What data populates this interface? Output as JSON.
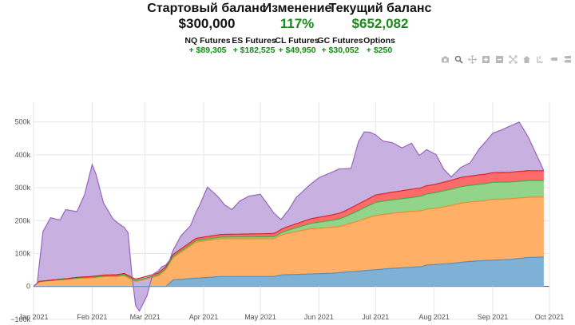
{
  "summary": {
    "start_label": "Стартовый баланс",
    "start_value": "$300,000",
    "change_label": "Изменение",
    "change_value": "117%",
    "current_label": "Текущий баланс",
    "current_value": "$652,082",
    "value_color": "#1a8a1a",
    "subtotals": [
      {
        "label": "NQ Futures",
        "value": "+ $89,305"
      },
      {
        "label": "ES Futures",
        "value": "+ $182,525"
      },
      {
        "label": "CL Futures",
        "value": "+ $49,950"
      },
      {
        "label": "GC Futures",
        "value": "+ $30,052"
      },
      {
        "label": "Options",
        "value": "+ $250"
      }
    ]
  },
  "toolbar_icons": [
    "camera-icon",
    "zoom-icon",
    "pan-icon",
    "zoom-in-icon",
    "zoom-out-icon",
    "autoscale-icon",
    "home-icon",
    "spike-lines-icon",
    "hover-closest-icon",
    "hover-compare-icon"
  ],
  "chart_data": {
    "type": "area",
    "stacked": true,
    "x_axis": {
      "min": "2021-01-01",
      "max": "2021-10-01",
      "tick_labels": [
        "Jan 2021",
        "Feb 2021",
        "Mar 2021",
        "Apr 2021",
        "May 2021",
        "Jun 2021",
        "Jul 2021",
        "Aug 2021",
        "Sep 2021",
        "Oct 2021"
      ],
      "ticks": [
        "2021-01-01",
        "2021-02-01",
        "2021-03-01",
        "2021-04-01",
        "2021-05-01",
        "2021-06-01",
        "2021-07-01",
        "2021-08-01",
        "2021-09-01",
        "2021-10-01"
      ]
    },
    "y_axis": {
      "ylim": [
        -110000,
        560000
      ],
      "tick_values": [
        -100000,
        0,
        100000,
        200000,
        300000,
        400000,
        500000
      ],
      "tick_labels": [
        "−100k",
        "0",
        "100k",
        "200k",
        "300k",
        "400k",
        "500k"
      ]
    },
    "grid": true,
    "series": [
      {
        "color": "#7fb0d6",
        "line": "#5a8fb8",
        "points": [
          [
            "2021-01-01",
            0
          ],
          [
            "2021-03-12",
            0
          ],
          [
            "2021-03-16",
            20000
          ],
          [
            "2021-03-28",
            25000
          ],
          [
            "2021-04-10",
            30000
          ],
          [
            "2021-05-08",
            30000
          ],
          [
            "2021-05-12",
            35000
          ],
          [
            "2021-06-08",
            40000
          ],
          [
            "2021-06-12",
            42000
          ],
          [
            "2021-07-10",
            55000
          ],
          [
            "2021-07-25",
            60000
          ],
          [
            "2021-07-28",
            65000
          ],
          [
            "2021-08-10",
            70000
          ],
          [
            "2021-08-18",
            75000
          ],
          [
            "2021-08-25",
            78000
          ],
          [
            "2021-09-10",
            82000
          ],
          [
            "2021-09-20",
            88000
          ],
          [
            "2021-09-28",
            89305
          ]
        ]
      },
      {
        "color": "#ffb066",
        "line": "#f08a30",
        "points": [
          [
            "2021-01-01",
            0
          ],
          [
            "2021-01-04",
            15000
          ],
          [
            "2021-01-10",
            18000
          ],
          [
            "2021-01-15",
            20000
          ],
          [
            "2021-01-20",
            22000
          ],
          [
            "2021-01-25",
            25000
          ],
          [
            "2021-01-31",
            26000
          ],
          [
            "2021-02-08",
            30000
          ],
          [
            "2021-02-14",
            30000
          ],
          [
            "2021-02-18",
            33000
          ],
          [
            "2021-02-24",
            15000
          ],
          [
            "2021-02-28",
            20000
          ],
          [
            "2021-03-08",
            32000
          ],
          [
            "2021-03-15",
            65000
          ],
          [
            "2021-03-28",
            110000
          ],
          [
            "2021-04-10",
            115000
          ],
          [
            "2021-05-08",
            115000
          ],
          [
            "2021-05-15",
            125000
          ],
          [
            "2021-05-28",
            138000
          ],
          [
            "2021-06-12",
            140000
          ],
          [
            "2021-06-20",
            150000
          ],
          [
            "2021-07-01",
            165000
          ],
          [
            "2021-07-20",
            170000
          ],
          [
            "2021-08-01",
            170000
          ],
          [
            "2021-08-15",
            180000
          ],
          [
            "2021-08-28",
            182000
          ],
          [
            "2021-09-01",
            185000
          ],
          [
            "2021-09-28",
            182525
          ]
        ]
      },
      {
        "color": "#92d48a",
        "line": "#4aa840",
        "points": [
          [
            "2021-01-01",
            0
          ],
          [
            "2021-01-10",
            0
          ],
          [
            "2021-01-20",
            1000
          ],
          [
            "2021-02-10",
            2000
          ],
          [
            "2021-03-01",
            3000
          ],
          [
            "2021-03-20",
            4000
          ],
          [
            "2021-04-10",
            5000
          ],
          [
            "2021-05-10",
            6000
          ],
          [
            "2021-05-20",
            12000
          ],
          [
            "2021-06-01",
            18000
          ],
          [
            "2021-06-15",
            25000
          ],
          [
            "2021-07-01",
            40000
          ],
          [
            "2021-07-20",
            42000
          ],
          [
            "2021-08-01",
            48000
          ],
          [
            "2021-08-15",
            50000
          ],
          [
            "2021-09-01",
            52000
          ],
          [
            "2021-09-28",
            49950
          ]
        ]
      },
      {
        "color": "#ff6b6b",
        "line": "#d62728",
        "points": [
          [
            "2021-01-01",
            0
          ],
          [
            "2021-01-10",
            1000
          ],
          [
            "2021-02-10",
            3000
          ],
          [
            "2021-03-01",
            5000
          ],
          [
            "2021-03-20",
            6000
          ],
          [
            "2021-04-10",
            8000
          ],
          [
            "2021-05-10",
            10000
          ],
          [
            "2021-05-20",
            12000
          ],
          [
            "2021-06-01",
            15000
          ],
          [
            "2021-06-15",
            18000
          ],
          [
            "2021-07-01",
            22000
          ],
          [
            "2021-07-20",
            25000
          ],
          [
            "2021-08-01",
            25000
          ],
          [
            "2021-08-15",
            28000
          ],
          [
            "2021-09-01",
            29000
          ],
          [
            "2021-09-15",
            30000
          ],
          [
            "2021-09-28",
            30052
          ]
        ]
      },
      {
        "color": "#c8b0e0",
        "line": "#9467bd",
        "points": [
          [
            "2021-01-01",
            0
          ],
          [
            "2021-01-03",
            0
          ],
          [
            "2021-01-06",
            150000
          ],
          [
            "2021-01-10",
            190000
          ],
          [
            "2021-01-15",
            180000
          ],
          [
            "2021-01-18",
            210000
          ],
          [
            "2021-01-24",
            200000
          ],
          [
            "2021-01-28",
            250000
          ],
          [
            "2021-02-01",
            340000
          ],
          [
            "2021-02-03",
            310000
          ],
          [
            "2021-02-07",
            220000
          ],
          [
            "2021-02-12",
            170000
          ],
          [
            "2021-02-16",
            150000
          ],
          [
            "2021-02-20",
            130000
          ],
          [
            "2021-02-22",
            10000
          ],
          [
            "2021-02-24",
            -80000
          ],
          [
            "2021-02-26",
            -100000
          ],
          [
            "2021-03-02",
            -60000
          ],
          [
            "2021-03-05",
            0
          ],
          [
            "2021-03-10",
            10000
          ],
          [
            "2021-03-14",
            0
          ],
          [
            "2021-03-20",
            40000
          ],
          [
            "2021-03-25",
            50000
          ],
          [
            "2021-03-30",
            100000
          ],
          [
            "2021-04-03",
            150000
          ],
          [
            "2021-04-08",
            120000
          ],
          [
            "2021-04-12",
            90000
          ],
          [
            "2021-04-16",
            75000
          ],
          [
            "2021-04-20",
            100000
          ],
          [
            "2021-04-25",
            115000
          ],
          [
            "2021-05-01",
            120000
          ],
          [
            "2021-05-06",
            80000
          ],
          [
            "2021-05-12",
            30000
          ],
          [
            "2021-05-16",
            50000
          ],
          [
            "2021-05-20",
            80000
          ],
          [
            "2021-05-26",
            100000
          ],
          [
            "2021-06-01",
            120000
          ],
          [
            "2021-06-08",
            130000
          ],
          [
            "2021-06-12",
            135000
          ],
          [
            "2021-06-18",
            120000
          ],
          [
            "2021-06-22",
            190000
          ],
          [
            "2021-06-25",
            210000
          ],
          [
            "2021-06-28",
            200000
          ],
          [
            "2021-07-05",
            160000
          ],
          [
            "2021-07-10",
            150000
          ],
          [
            "2021-07-15",
            130000
          ],
          [
            "2021-07-20",
            140000
          ],
          [
            "2021-07-24",
            100000
          ],
          [
            "2021-07-28",
            110000
          ],
          [
            "2021-08-02",
            90000
          ],
          [
            "2021-08-06",
            40000
          ],
          [
            "2021-08-10",
            10000
          ],
          [
            "2021-08-15",
            30000
          ],
          [
            "2021-08-20",
            40000
          ],
          [
            "2021-08-25",
            80000
          ],
          [
            "2021-09-01",
            120000
          ],
          [
            "2021-09-06",
            130000
          ],
          [
            "2021-09-10",
            140000
          ],
          [
            "2021-09-15",
            150000
          ],
          [
            "2021-09-20",
            100000
          ],
          [
            "2021-09-24",
            50000
          ],
          [
            "2021-09-28",
            250
          ]
        ]
      }
    ]
  }
}
